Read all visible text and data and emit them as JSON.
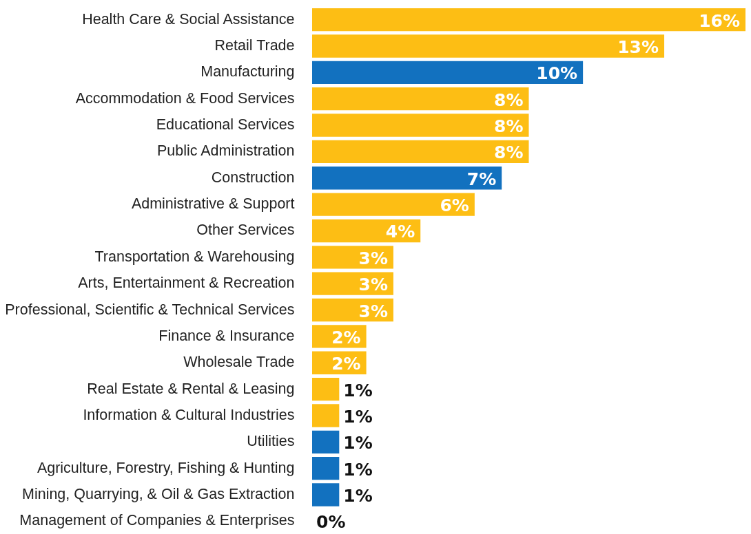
{
  "chart_data": {
    "type": "bar",
    "orientation": "horizontal",
    "xlim": [
      0,
      16
    ],
    "categories": [
      "Health Care & Social Assistance",
      "Retail Trade",
      "Manufacturing",
      "Accommodation & Food Services",
      "Educational Services",
      "Public Administration",
      "Construction",
      "Administrative & Support",
      "Other Services",
      "Transportation & Warehousing",
      "Arts, Entertainment & Recreation",
      "Professional, Scientific & Technical Services",
      "Finance & Insurance",
      "Wholesale Trade",
      "Real Estate & Rental & Leasing",
      "Information & Cultural Industries",
      "Utilities",
      "Agriculture, Forestry, Fishing & Hunting",
      "Mining, Quarrying, & Oil & Gas Extraction",
      "Management of Companies & Enterprises"
    ],
    "values": [
      16,
      13,
      10,
      8,
      8,
      8,
      7,
      6,
      4,
      3,
      3,
      3,
      2,
      2,
      1,
      1,
      1,
      1,
      1,
      0
    ],
    "colors": [
      "#fdbe14",
      "#fdbe14",
      "#1271bf",
      "#fdbe14",
      "#fdbe14",
      "#fdbe14",
      "#1271bf",
      "#fdbe14",
      "#fdbe14",
      "#fdbe14",
      "#fdbe14",
      "#fdbe14",
      "#fdbe14",
      "#fdbe14",
      "#fdbe14",
      "#fdbe14",
      "#1271bf",
      "#1271bf",
      "#1271bf",
      "#fdbe14"
    ],
    "value_labels": [
      "16%",
      "13%",
      "10%",
      "8%",
      "8%",
      "8%",
      "7%",
      "6%",
      "4%",
      "3%",
      "3%",
      "3%",
      "2%",
      "2%",
      "1%",
      "1%",
      "1%",
      "1%",
      "1%",
      "0%"
    ]
  }
}
